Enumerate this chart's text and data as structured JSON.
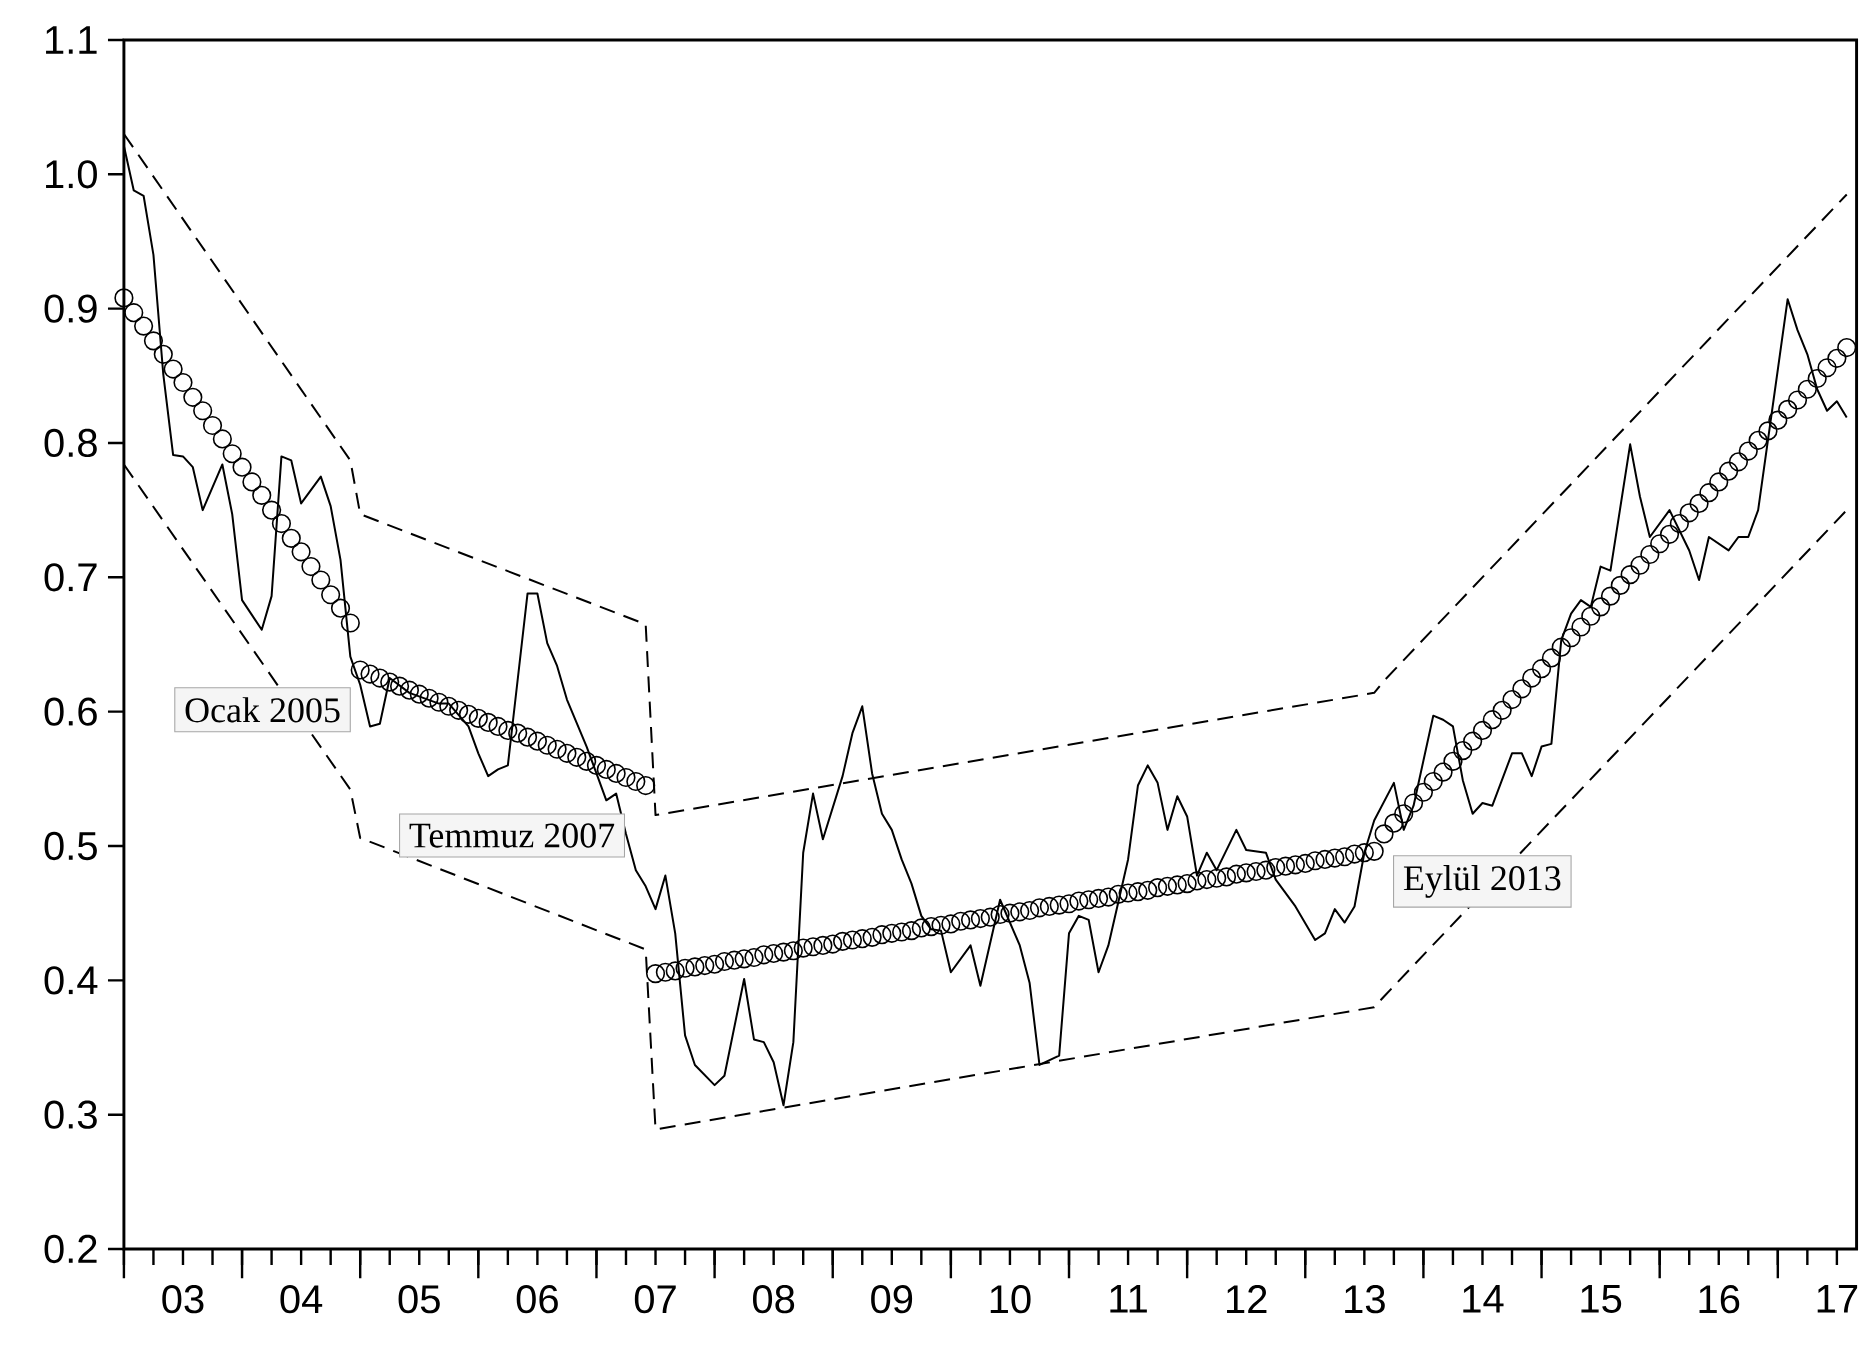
{
  "chart_data": {
    "type": "line",
    "x": [
      "2003-01",
      "2003-02",
      "2003-03",
      "2003-04",
      "2003-05",
      "2003-06",
      "2003-07",
      "2003-08",
      "2003-09",
      "2003-10",
      "2003-11",
      "2003-12",
      "2004-01",
      "2004-02",
      "2004-03",
      "2004-04",
      "2004-05",
      "2004-06",
      "2004-07",
      "2004-08",
      "2004-09",
      "2004-10",
      "2004-11",
      "2004-12",
      "2005-01",
      "2005-02",
      "2005-03",
      "2005-04",
      "2005-05",
      "2005-06",
      "2005-07",
      "2005-08",
      "2005-09",
      "2005-10",
      "2005-11",
      "2005-12",
      "2006-01",
      "2006-02",
      "2006-03",
      "2006-04",
      "2006-05",
      "2006-06",
      "2006-07",
      "2006-08",
      "2006-09",
      "2006-10",
      "2006-11",
      "2006-12",
      "2007-01",
      "2007-02",
      "2007-03",
      "2007-04",
      "2007-05",
      "2007-06",
      "2007-07",
      "2007-08",
      "2007-09",
      "2007-10",
      "2007-11",
      "2007-12",
      "2008-01",
      "2008-02",
      "2008-03",
      "2008-04",
      "2008-05",
      "2008-06",
      "2008-07",
      "2008-08",
      "2008-09",
      "2008-10",
      "2008-11",
      "2008-12",
      "2009-01",
      "2009-02",
      "2009-03",
      "2009-04",
      "2009-05",
      "2009-06",
      "2009-07",
      "2009-08",
      "2009-09",
      "2009-10",
      "2009-11",
      "2009-12",
      "2010-01",
      "2010-02",
      "2010-03",
      "2010-04",
      "2010-05",
      "2010-06",
      "2010-07",
      "2010-08",
      "2010-09",
      "2010-10",
      "2010-11",
      "2010-12",
      "2011-01",
      "2011-02",
      "2011-03",
      "2011-04",
      "2011-05",
      "2011-06",
      "2011-07",
      "2011-08",
      "2011-09",
      "2011-10",
      "2011-11",
      "2011-12",
      "2012-01",
      "2012-02",
      "2012-03",
      "2012-04",
      "2012-05",
      "2012-06",
      "2012-07",
      "2012-08",
      "2012-09",
      "2012-10",
      "2012-11",
      "2012-12",
      "2013-01",
      "2013-02",
      "2013-03",
      "2013-04",
      "2013-05",
      "2013-06",
      "2013-07",
      "2013-08",
      "2013-09",
      "2013-10",
      "2013-11",
      "2013-12",
      "2014-01",
      "2014-02",
      "2014-03",
      "2014-04",
      "2014-05",
      "2014-06",
      "2014-07",
      "2014-08",
      "2014-09",
      "2014-10",
      "2014-11",
      "2014-12",
      "2015-01",
      "2015-02",
      "2015-03",
      "2015-04",
      "2015-05",
      "2015-06",
      "2015-07",
      "2015-08",
      "2015-09",
      "2015-10",
      "2015-11",
      "2015-12",
      "2016-01",
      "2016-02",
      "2016-03",
      "2016-04",
      "2016-05",
      "2016-06",
      "2016-07",
      "2016-08",
      "2016-09",
      "2016-10",
      "2016-11",
      "2016-12",
      "2017-01",
      "2017-02",
      "2017-03",
      "2017-04",
      "2017-05",
      "2017-06",
      "2017-07",
      "2017-08"
    ],
    "series": [
      {
        "color": "#000000",
        "line_style": "solid",
        "x": [
          "2003-01",
          "2003-02",
          "2003-03",
          "2003-04",
          "2003-05",
          "2003-06",
          "2003-07",
          "2003-08",
          "2003-09",
          "2003-11",
          "2003-12",
          "2004-01",
          "2004-03",
          "2004-04",
          "2004-05",
          "2004-06",
          "2004-07",
          "2004-09",
          "2004-10",
          "2004-11",
          "2004-12",
          "2005-01",
          "2005-02",
          "2005-03",
          "2005-04",
          "2005-06",
          "2005-09",
          "2005-10",
          "2005-12",
          "2006-01",
          "2006-02",
          "2006-03",
          "2006-04",
          "2006-06",
          "2006-07",
          "2006-08",
          "2006-09",
          "2006-10",
          "2006-12",
          "2007-01",
          "2007-02",
          "2007-03",
          "2007-04",
          "2007-05",
          "2007-06",
          "2007-07",
          "2007-08",
          "2007-09",
          "2007-10",
          "2007-11",
          "2008-01",
          "2008-02",
          "2008-04",
          "2008-05",
          "2008-06",
          "2008-07",
          "2008-08",
          "2008-09",
          "2008-10",
          "2008-11",
          "2008-12",
          "2009-02",
          "2009-03",
          "2009-04",
          "2009-05",
          "2009-06",
          "2009-07",
          "2009-08",
          "2009-09",
          "2009-10",
          "2009-11",
          "2009-12",
          "2010-01",
          "2010-03",
          "2010-04",
          "2010-06",
          "2010-08",
          "2010-09",
          "2010-10",
          "2010-12",
          "2011-01",
          "2011-02",
          "2011-03",
          "2011-04",
          "2011-05",
          "2011-07",
          "2011-08",
          "2011-09",
          "2011-10",
          "2011-11",
          "2011-12",
          "2012-01",
          "2012-02",
          "2012-03",
          "2012-04",
          "2012-06",
          "2012-07",
          "2012-09",
          "2012-10",
          "2012-12",
          "2013-02",
          "2013-03",
          "2013-04",
          "2013-05",
          "2013-06",
          "2013-07",
          "2013-08",
          "2013-10",
          "2013-11",
          "2013-12",
          "2014-02",
          "2014-03",
          "2014-04",
          "2014-05",
          "2014-06",
          "2014-07",
          "2014-08",
          "2014-10",
          "2014-11",
          "2014-12",
          "2015-01",
          "2015-02",
          "2015-03",
          "2015-04",
          "2015-05",
          "2015-06",
          "2015-07",
          "2015-08",
          "2015-10",
          "2015-11",
          "2015-12",
          "2016-02",
          "2016-04",
          "2016-05",
          "2016-06",
          "2016-08",
          "2016-09",
          "2016-10",
          "2016-11",
          "2017-02",
          "2017-03",
          "2017-04",
          "2017-05",
          "2017-06",
          "2017-07",
          "2017-08"
        ],
        "values": [
          1.021,
          0.988,
          0.984,
          0.94,
          0.851,
          0.791,
          0.79,
          0.782,
          0.75,
          0.784,
          0.747,
          0.683,
          0.661,
          0.686,
          0.79,
          0.787,
          0.755,
          0.775,
          0.753,
          0.713,
          0.641,
          0.62,
          0.589,
          0.591,
          0.625,
          0.614,
          0.606,
          0.606,
          0.589,
          0.569,
          0.552,
          0.557,
          0.56,
          0.688,
          0.688,
          0.651,
          0.634,
          0.609,
          0.574,
          0.554,
          0.534,
          0.539,
          0.509,
          0.482,
          0.47,
          0.453,
          0.478,
          0.435,
          0.359,
          0.337,
          0.322,
          0.329,
          0.401,
          0.356,
          0.354,
          0.339,
          0.307,
          0.354,
          0.495,
          0.539,
          0.505,
          0.552,
          0.584,
          0.604,
          0.554,
          0.524,
          0.512,
          0.49,
          0.472,
          0.448,
          0.438,
          0.437,
          0.406,
          0.426,
          0.396,
          0.46,
          0.426,
          0.398,
          0.337,
          0.344,
          0.435,
          0.448,
          0.445,
          0.406,
          0.426,
          0.49,
          0.545,
          0.56,
          0.547,
          0.512,
          0.537,
          0.522,
          0.478,
          0.495,
          0.482,
          0.512,
          0.497,
          0.495,
          0.475,
          0.455,
          0.43,
          0.435,
          0.453,
          0.443,
          0.455,
          0.495,
          0.519,
          0.547,
          0.512,
          0.53,
          0.597,
          0.594,
          0.589,
          0.549,
          0.524,
          0.532,
          0.53,
          0.569,
          0.569,
          0.552,
          0.574,
          0.576,
          0.653,
          0.673,
          0.683,
          0.678,
          0.708,
          0.705,
          0.799,
          0.76,
          0.73,
          0.75,
          0.72,
          0.698,
          0.73,
          0.72,
          0.73,
          0.73,
          0.75,
          0.907,
          0.884,
          0.866,
          0.84,
          0.824,
          0.831,
          0.819
        ]
      },
      {
        "type": "scatter",
        "color": "#000000",
        "marker": "circle",
        "values": [
          0.908,
          0.897,
          0.887,
          0.876,
          0.866,
          0.855,
          0.845,
          0.834,
          0.824,
          0.813,
          0.803,
          0.792,
          0.782,
          0.771,
          0.761,
          0.75,
          0.74,
          0.729,
          0.719,
          0.708,
          0.698,
          0.687,
          0.677,
          0.666,
          0.631,
          0.628,
          0.625,
          0.622,
          0.619,
          0.616,
          0.613,
          0.61,
          0.607,
          0.604,
          0.601,
          0.598,
          0.595,
          0.592,
          0.589,
          0.586,
          0.584,
          0.581,
          0.578,
          0.575,
          0.572,
          0.569,
          0.566,
          0.563,
          0.56,
          0.557,
          0.554,
          0.551,
          0.548,
          0.545,
          0.405,
          0.406,
          0.407,
          0.409,
          0.41,
          0.411,
          0.412,
          0.414,
          0.415,
          0.416,
          0.417,
          0.419,
          0.42,
          0.421,
          0.422,
          0.424,
          0.425,
          0.426,
          0.427,
          0.429,
          0.43,
          0.431,
          0.432,
          0.434,
          0.435,
          0.436,
          0.437,
          0.439,
          0.44,
          0.441,
          0.442,
          0.444,
          0.445,
          0.446,
          0.447,
          0.449,
          0.45,
          0.451,
          0.452,
          0.454,
          0.455,
          0.456,
          0.457,
          0.459,
          0.46,
          0.461,
          0.462,
          0.464,
          0.465,
          0.466,
          0.467,
          0.469,
          0.47,
          0.471,
          0.472,
          0.474,
          0.475,
          0.476,
          0.477,
          0.479,
          0.48,
          0.481,
          0.482,
          0.484,
          0.485,
          0.486,
          0.487,
          0.489,
          0.49,
          0.491,
          0.492,
          0.494,
          0.495,
          0.496,
          0.509,
          0.517,
          0.524,
          0.532,
          0.54,
          0.548,
          0.555,
          0.563,
          0.571,
          0.578,
          0.586,
          0.594,
          0.601,
          0.609,
          0.617,
          0.625,
          0.632,
          0.64,
          0.648,
          0.655,
          0.663,
          0.671,
          0.678,
          0.686,
          0.694,
          0.702,
          0.709,
          0.717,
          0.725,
          0.732,
          0.74,
          0.748,
          0.755,
          0.763,
          0.771,
          0.779,
          0.786,
          0.794,
          0.802,
          0.809,
          0.817,
          0.825,
          0.832,
          0.84,
          0.848,
          0.856,
          0.863,
          0.871
        ]
      },
      {
        "type": "line",
        "color": "#000000",
        "line_style": "dashed",
        "x": [
          "2003-01",
          "2004-12",
          "2005-01",
          "2007-06",
          "2007-07",
          "2013-08",
          "2013-09",
          "2017-08"
        ],
        "values": [
          1.03,
          0.787,
          0.747,
          0.665,
          0.523,
          0.614,
          0.623,
          0.985
        ]
      },
      {
        "type": "line",
        "color": "#000000",
        "line_style": "dashed",
        "x": [
          "2003-01",
          "2004-12",
          "2005-01",
          "2007-06",
          "2007-07",
          "2013-08",
          "2013-09",
          "2017-08"
        ],
        "values": [
          0.784,
          0.542,
          0.506,
          0.423,
          0.289,
          0.38,
          0.388,
          0.75
        ]
      }
    ],
    "annotations": [
      "Ocak 2005",
      "Temmuz 2007",
      "Eylül 2013"
    ],
    "xlim": [
      "2003-01",
      "2017-09"
    ],
    "xticks": [
      {
        "value": "2003-01",
        "label": null
      },
      {
        "value": "2003-04",
        "label": null
      },
      {
        "value": "2003-07",
        "label": "03"
      },
      {
        "value": "2003-10",
        "label": null
      },
      {
        "value": "2004-01",
        "label": null
      },
      {
        "value": "2004-04",
        "label": null
      },
      {
        "value": "2004-07",
        "label": "04"
      },
      {
        "value": "2004-10",
        "label": null
      },
      {
        "value": "2005-01",
        "label": null
      },
      {
        "value": "2005-04",
        "label": null
      },
      {
        "value": "2005-07",
        "label": "05"
      },
      {
        "value": "2005-10",
        "label": null
      },
      {
        "value": "2006-01",
        "label": null
      },
      {
        "value": "2006-04",
        "label": null
      },
      {
        "value": "2006-07",
        "label": "06"
      },
      {
        "value": "2006-10",
        "label": null
      },
      {
        "value": "2007-01",
        "label": null
      },
      {
        "value": "2007-04",
        "label": null
      },
      {
        "value": "2007-07",
        "label": "07"
      },
      {
        "value": "2007-10",
        "label": null
      },
      {
        "value": "2008-01",
        "label": null
      },
      {
        "value": "2008-04",
        "label": null
      },
      {
        "value": "2008-07",
        "label": "08"
      },
      {
        "value": "2008-10",
        "label": null
      },
      {
        "value": "2009-01",
        "label": null
      },
      {
        "value": "2009-04",
        "label": null
      },
      {
        "value": "2009-07",
        "label": "09"
      },
      {
        "value": "2009-10",
        "label": null
      },
      {
        "value": "2010-01",
        "label": null
      },
      {
        "value": "2010-04",
        "label": null
      },
      {
        "value": "2010-07",
        "label": "10"
      },
      {
        "value": "2010-10",
        "label": null
      },
      {
        "value": "2011-01",
        "label": null
      },
      {
        "value": "2011-04",
        "label": null
      },
      {
        "value": "2011-07",
        "label": "11"
      },
      {
        "value": "2011-10",
        "label": null
      },
      {
        "value": "2012-01",
        "label": null
      },
      {
        "value": "2012-04",
        "label": null
      },
      {
        "value": "2012-07",
        "label": "12"
      },
      {
        "value": "2012-10",
        "label": null
      },
      {
        "value": "2013-01",
        "label": null
      },
      {
        "value": "2013-04",
        "label": null
      },
      {
        "value": "2013-07",
        "label": "13"
      },
      {
        "value": "2013-10",
        "label": null
      },
      {
        "value": "2014-01",
        "label": null
      },
      {
        "value": "2014-04",
        "label": null
      },
      {
        "value": "2014-07",
        "label": "14"
      },
      {
        "value": "2014-10",
        "label": null
      },
      {
        "value": "2015-01",
        "label": null
      },
      {
        "value": "2015-04",
        "label": null
      },
      {
        "value": "2015-07",
        "label": "15"
      },
      {
        "value": "2015-10",
        "label": null
      },
      {
        "value": "2016-01",
        "label": null
      },
      {
        "value": "2016-04",
        "label": null
      },
      {
        "value": "2016-07",
        "label": "16"
      },
      {
        "value": "2016-10",
        "label": null
      },
      {
        "value": "2017-01",
        "label": null
      },
      {
        "value": "2017-04",
        "label": null
      },
      {
        "value": "2017-07",
        "label": "17"
      }
    ],
    "ylim": [
      0.2,
      1.1
    ],
    "yticks": [
      {
        "value": 0.2,
        "label": "0.2"
      },
      {
        "value": 0.3,
        "label": "0.3"
      },
      {
        "value": 0.4,
        "label": "0.4"
      },
      {
        "value": 0.5,
        "label": "0.5"
      },
      {
        "value": 0.6,
        "label": "0.6"
      },
      {
        "value": 0.7,
        "label": "0.7"
      },
      {
        "value": 0.8,
        "label": "0.8"
      },
      {
        "value": 0.9,
        "label": "0.9"
      },
      {
        "value": 1.0,
        "label": "1.0"
      },
      {
        "value": 1.1,
        "label": "1.1"
      }
    ]
  }
}
